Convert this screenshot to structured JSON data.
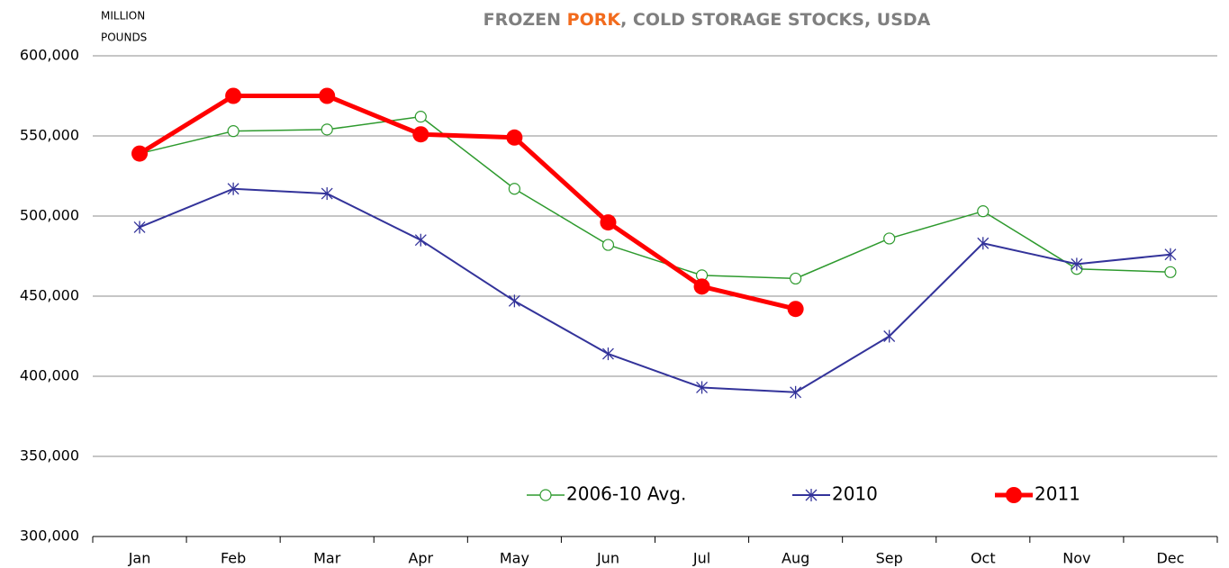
{
  "chart_data": {
    "type": "line",
    "title": [
      "FROZEN ",
      "PORK",
      ", COLD STORAGE STOCKS, USDA"
    ],
    "title_colors": [
      "#7f7f7f",
      "#f26b1d",
      "#7f7f7f"
    ],
    "y_label": [
      "MILLION",
      "POUNDS"
    ],
    "categories": [
      "Jan",
      "Feb",
      "Mar",
      "Apr",
      "May",
      "Jun",
      "Jul",
      "Aug",
      "Sep",
      "Oct",
      "Nov",
      "Dec"
    ],
    "series": [
      {
        "name": "2006-10 Avg.",
        "color": "#2e9a2e",
        "marker": "open-circle",
        "line_width": 1.5,
        "values": [
          539000,
          553000,
          554000,
          562000,
          517000,
          482000,
          463000,
          461000,
          486000,
          503000,
          467000,
          465000
        ]
      },
      {
        "name": "2010",
        "color": "#33339a",
        "marker": "asterisk",
        "line_width": 2,
        "values": [
          493000,
          517000,
          514000,
          485000,
          447000,
          414000,
          393000,
          390000,
          425000,
          483000,
          470000,
          476000
        ]
      },
      {
        "name": "2011",
        "color": "#ff0000",
        "marker": "filled-circle",
        "line_width": 5,
        "values": [
          539000,
          575000,
          575000,
          551000,
          549000,
          496000,
          456000,
          442000,
          null,
          null,
          null,
          null
        ]
      }
    ],
    "ylim": [
      300000,
      600000
    ],
    "yticks": [
      {
        "value": 300000,
        "label": "300,000"
      },
      {
        "value": 350000,
        "label": "350,000"
      },
      {
        "value": 400000,
        "label": "400,000"
      },
      {
        "value": 450000,
        "label": "450,000"
      },
      {
        "value": 500000,
        "label": "500,000"
      },
      {
        "value": 550000,
        "label": "550,000"
      },
      {
        "value": 600000,
        "label": "600,000"
      }
    ],
    "grid": true,
    "legend": "bottom"
  }
}
